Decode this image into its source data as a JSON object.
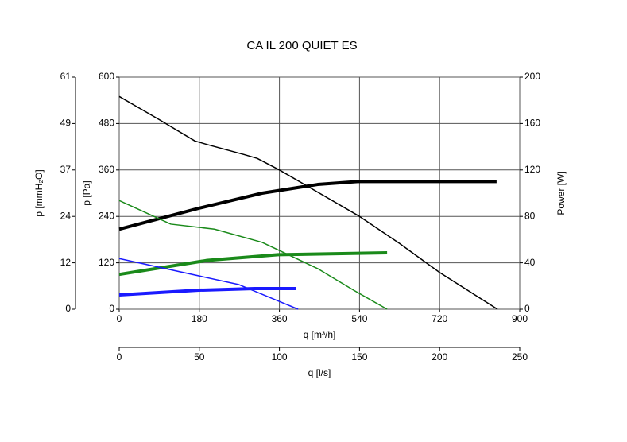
{
  "chart_data": {
    "type": "line",
    "title": "CA IL 200 QUIET ES",
    "xlabel": "q [m³/h]",
    "xlim": [
      0,
      900
    ],
    "xticks": [
      0,
      180,
      360,
      540,
      720,
      900
    ],
    "x2label": "q [l/s]",
    "x2lim": [
      0,
      250
    ],
    "x2ticks": [
      0,
      50,
      100,
      150,
      200,
      250
    ],
    "ylabel": "p [Pa]",
    "ylim": [
      0,
      600
    ],
    "yticks": [
      0,
      120,
      240,
      360,
      480,
      600
    ],
    "y3label": "p [mmH₂O]",
    "y3lim": [
      0,
      61.18
    ],
    "y3ticks": [
      0,
      {
        "value": 12.24,
        "label": "12"
      },
      {
        "value": 24.47,
        "label": "24"
      },
      {
        "value": 36.71,
        "label": "37"
      },
      {
        "value": 48.94,
        "label": "49"
      },
      {
        "value": 61.18,
        "label": "61"
      }
    ],
    "y2label": "Power [W]",
    "y2lim": [
      0,
      200
    ],
    "y2ticks": [
      0,
      40,
      80,
      120,
      160,
      200
    ],
    "grid": true,
    "series": [
      {
        "color": "#000000",
        "line_width": 1.5,
        "x": [
          0,
          90,
          170,
          200,
          280,
          310,
          360,
          450,
          540,
          630,
          720,
          850
        ],
        "values": [
          550,
          490,
          435,
          425,
          400,
          390,
          360,
          300,
          240,
          170,
          95,
          0
        ]
      },
      {
        "color": "#000000",
        "line_width": 4,
        "axis": "y2",
        "x": [
          0,
          179,
          321,
          446,
          536,
          848
        ],
        "values": [
          69,
          87,
          100,
          107.5,
          110,
          110
        ]
      },
      {
        "color": "#1a8a1a",
        "line_width": 1.5,
        "x": [
          0,
          116,
          214,
          321,
          446,
          527,
          602
        ],
        "values": [
          281,
          220,
          207,
          173,
          105,
          49,
          0
        ]
      },
      {
        "color": "#1a8a1a",
        "line_width": 4,
        "axis": "y2",
        "x": [
          0,
          196,
          357,
          602
        ],
        "values": [
          30,
          42,
          47,
          48.6
        ]
      },
      {
        "color": "#1a1aff",
        "line_width": 1.5,
        "x": [
          0,
          268,
          402
        ],
        "values": [
          131,
          64,
          0
        ]
      },
      {
        "color": "#1a1aff",
        "line_width": 4,
        "axis": "y2",
        "x": [
          0,
          179,
          304,
          398
        ],
        "values": [
          12.3,
          16.4,
          17.8,
          17.8
        ]
      }
    ]
  }
}
